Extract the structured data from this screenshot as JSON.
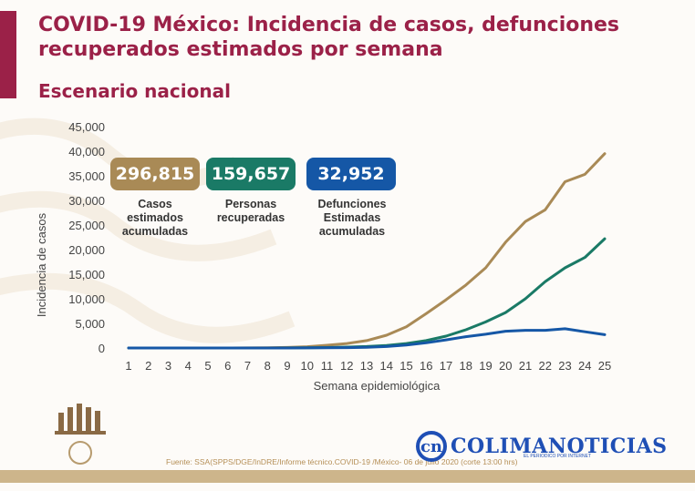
{
  "title": "COVID-19 México: Incidencia de casos, defunciones recuperados estimados por semana",
  "subtitle": "Escenario nacional",
  "colors": {
    "title": "#9b2148",
    "cases": "#a98a56",
    "recovered": "#1a7a66",
    "deaths": "#1557a6",
    "left_bar": "#9b2148",
    "bottom_band": "#cdb58b",
    "axis_text": "#444444"
  },
  "stats": [
    {
      "value": "296,815",
      "label": "Casos estimados acumuladas",
      "color_key": "cases"
    },
    {
      "value": "159,657",
      "label": "Personas recuperadas",
      "color_key": "recovered"
    },
    {
      "value": "32,952",
      "label": "Defunciones Estimadas acumuladas",
      "color_key": "deaths"
    }
  ],
  "chart_data": {
    "type": "line",
    "xlabel": "Semana epidemiológica",
    "ylabel": "Incidencia de casos",
    "x": [
      1,
      2,
      3,
      4,
      5,
      6,
      7,
      8,
      9,
      10,
      11,
      12,
      13,
      14,
      15,
      16,
      17,
      18,
      19,
      20,
      21,
      22,
      23,
      24,
      25
    ],
    "ylim": [
      0,
      45000
    ],
    "yticks": [
      0,
      5000,
      10000,
      15000,
      20000,
      25000,
      30000,
      35000,
      40000,
      45000
    ],
    "ytick_labels": [
      "0",
      "5,000",
      "10,000",
      "15,000",
      "20,000",
      "25,000",
      "30,000",
      "35,000",
      "40,000",
      "45,000"
    ],
    "grid": false,
    "series": [
      {
        "key": "cases",
        "values": [
          0,
          0,
          0,
          0,
          0,
          5,
          15,
          40,
          120,
          250,
          550,
          900,
          1500,
          2600,
          4300,
          7000,
          9800,
          12800,
          16300,
          21500,
          25700,
          28100,
          33800,
          35300,
          39500
        ]
      },
      {
        "key": "recovered",
        "values": [
          0,
          0,
          0,
          0,
          0,
          0,
          0,
          5,
          20,
          50,
          100,
          180,
          300,
          500,
          900,
          1500,
          2400,
          3700,
          5300,
          7200,
          10000,
          13500,
          16300,
          18400,
          22200
        ]
      },
      {
        "key": "deaths",
        "values": [
          0,
          0,
          0,
          0,
          0,
          0,
          0,
          2,
          5,
          15,
          40,
          80,
          150,
          300,
          600,
          1050,
          1650,
          2300,
          2800,
          3400,
          3600,
          3600,
          3900,
          3300,
          2700
        ]
      }
    ]
  },
  "source": "Fuente: SSA(SPPS/DGE/InDRE/Informe técnico.COVID-19 /México- 06 de julio 2020 (corte 13:00 hrs)",
  "logo": {
    "letter": "cn",
    "name": "COLIMANOTICIAS",
    "tagline": "EL PERIODICO POR INTERNET"
  }
}
